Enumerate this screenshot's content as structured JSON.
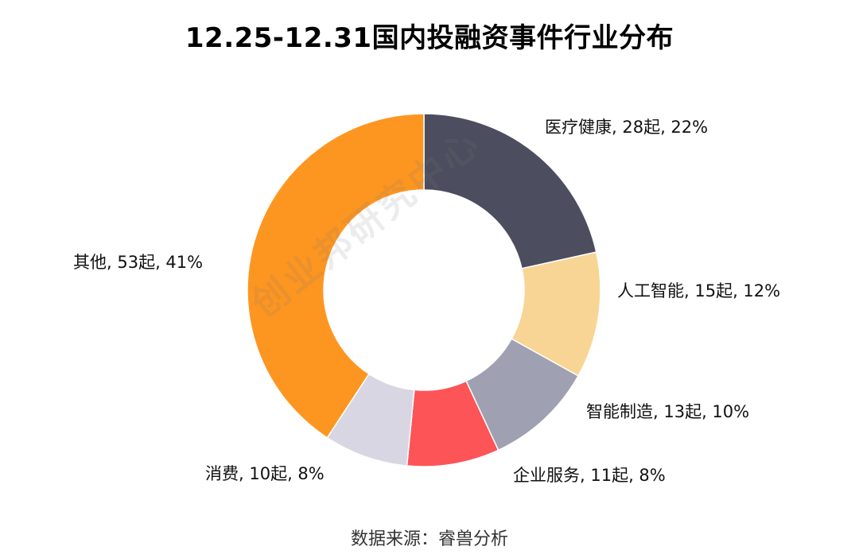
{
  "title": "12.25-12.31国内投融资事件行业分布",
  "source": "数据来源：睿兽分析",
  "watermark": "创业邦研究中心",
  "chart_data": {
    "type": "pie",
    "donut": true,
    "title": "12.25-12.31国内投融资事件行业分布",
    "unit": "起",
    "slices": [
      {
        "name": "医疗健康",
        "value": 28,
        "percent": 22,
        "label": "医疗健康, 28起, 22%",
        "color": "#4c4e5f"
      },
      {
        "name": "人工智能",
        "value": 15,
        "percent": 12,
        "label": "人工智能, 15起, 12%",
        "color": "#f8d595"
      },
      {
        "name": "智能制造",
        "value": 13,
        "percent": 10,
        "label": "智能制造, 13起, 10%",
        "color": "#9fa0b2"
      },
      {
        "name": "企业服务",
        "value": 11,
        "percent": 8,
        "label": "企业服务, 11起, 8%",
        "color": "#fd5457"
      },
      {
        "name": "消费",
        "value": 10,
        "percent": 8,
        "label": "消费, 10起, 8%",
        "color": "#d7d6e2"
      },
      {
        "name": "其他",
        "value": 53,
        "percent": 41,
        "label": "其他, 53起, 41%",
        "color": "#fd9621"
      }
    ]
  }
}
